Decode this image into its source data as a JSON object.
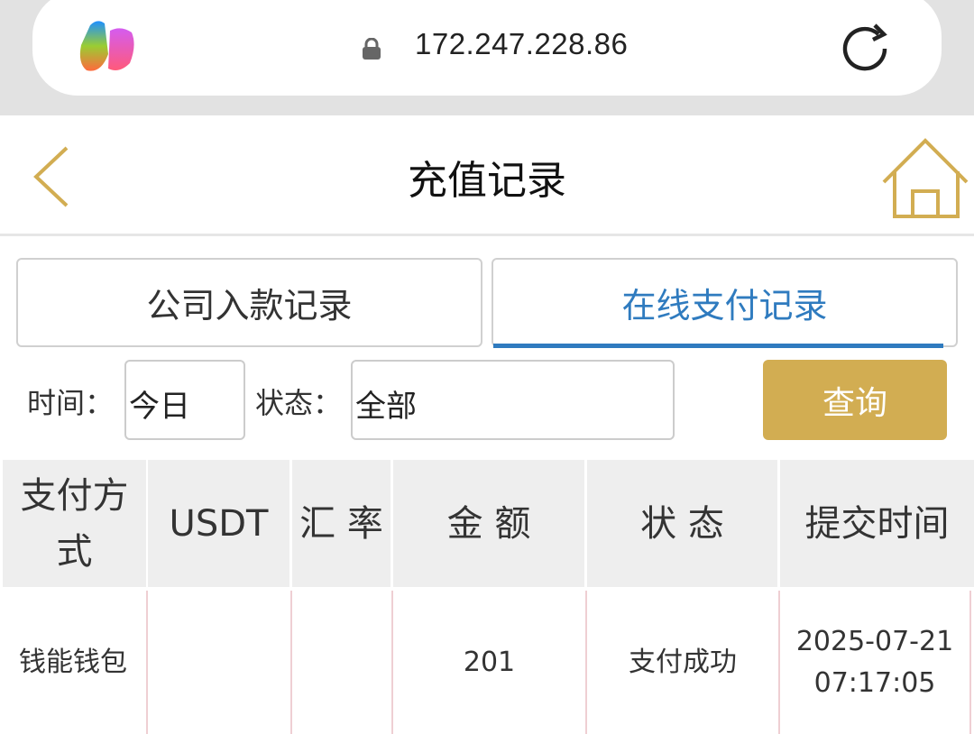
{
  "browser": {
    "url": "172.247.228.86",
    "logo_icon": "copilot-logo",
    "lock_icon": "lock-icon",
    "reload_icon": "reload-icon"
  },
  "header": {
    "title": "充值记录",
    "back_icon": "chevron-left-icon",
    "home_icon": "home-icon",
    "accent": "#d2ad52"
  },
  "tabs": [
    {
      "label": "公司入款记录",
      "active": false
    },
    {
      "label": "在线支付记录",
      "active": true,
      "color": "#2f7bbf"
    }
  ],
  "filters": {
    "time_label": "时间：",
    "time_value": "今日",
    "status_label": "状态：",
    "status_value": "全部",
    "query_label": "查询"
  },
  "table": {
    "headers": [
      "支付方式",
      "USDT",
      "汇 率",
      "金 额",
      "状 态",
      "提交时间"
    ],
    "rows": [
      {
        "method": "钱能钱包",
        "usdt": "",
        "rate": "",
        "amount": "201",
        "status": "支付成功",
        "time": "2025-07-21 07:17:05"
      }
    ]
  }
}
